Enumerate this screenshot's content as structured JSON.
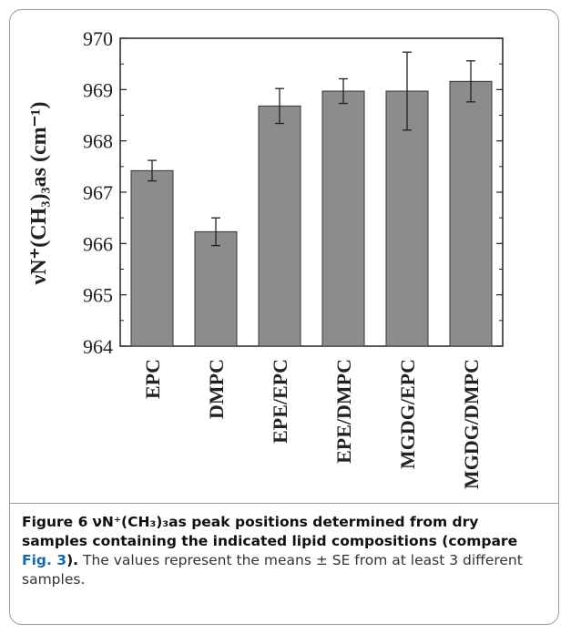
{
  "chart_data": {
    "type": "bar",
    "categories": [
      "EPC",
      "DMPC",
      "EPE/EPC",
      "EPE/DMPC",
      "MGDG/EPC",
      "MGDG/DMPC"
    ],
    "values": [
      967.42,
      966.23,
      968.68,
      968.97,
      968.97,
      969.16
    ],
    "errors": [
      0.2,
      0.27,
      0.34,
      0.24,
      0.76,
      0.4
    ],
    "ylabel": "νN⁺(CH₃)₃as (cm⁻¹)",
    "ylim": [
      964,
      970
    ],
    "yticks": [
      964,
      965,
      966,
      967,
      968,
      969,
      970
    ],
    "grid": false,
    "bar_color": "#8c8c8c"
  },
  "caption": {
    "figure_label": "Figure 6",
    "title_text": "νN⁺(CH₃)₃as peak positions determined from dry samples containing the indicated lipid compositions (compare ",
    "ref_text": "Fig. 3",
    "title_end": ").",
    "body": " The values represent the means ± SE from at least 3 different samples."
  }
}
